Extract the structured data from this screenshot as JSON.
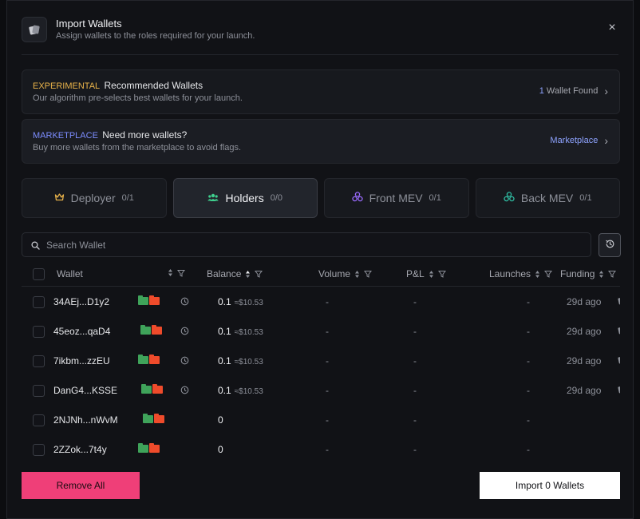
{
  "header": {
    "title": "Import Wallets",
    "subtitle": "Assign wallets to the roles required for your launch."
  },
  "banners": {
    "recommended": {
      "tag": "EXPERIMENTAL",
      "title": "Recommended Wallets",
      "subtitle": "Our algorithm pre-selects best wallets for your launch.",
      "count": "1",
      "count_label": "Wallet Found"
    },
    "marketplace": {
      "tag": "MARKETPLACE",
      "title": "Need more wallets?",
      "subtitle": "Buy more wallets from the marketplace to avoid flags.",
      "link": "Marketplace"
    }
  },
  "roles": [
    {
      "label": "Deployer",
      "count": "0/1",
      "icon": "crown-icon",
      "color": "#e8b24a"
    },
    {
      "label": "Holders",
      "count": "0/0",
      "icon": "users-icon",
      "color": "#3fcf8e"
    },
    {
      "label": "Front MEV",
      "count": "0/1",
      "icon": "cluster-icon",
      "color": "#9b6bff"
    },
    {
      "label": "Back MEV",
      "count": "0/1",
      "icon": "cluster-icon",
      "color": "#2fbfa4"
    }
  ],
  "active_role": "Holders",
  "search": {
    "placeholder": "Search Wallet"
  },
  "table": {
    "headers": {
      "wallet": "Wallet",
      "balance": "Balance",
      "volume": "Volume",
      "pnl": "P&L",
      "launches": "Launches",
      "funding": "Funding"
    },
    "rows": [
      {
        "address": "34AEj...D1y2",
        "balance": "0.1",
        "usd": "≈$10.53",
        "volume": "-",
        "pnl": "-",
        "launches": "-",
        "funding": "29d ago"
      },
      {
        "address": "45eoz...qaD4",
        "balance": "0.1",
        "usd": "≈$10.53",
        "volume": "-",
        "pnl": "-",
        "launches": "-",
        "funding": "29d ago"
      },
      {
        "address": "7ikbm...zzEU",
        "balance": "0.1",
        "usd": "≈$10.53",
        "volume": "-",
        "pnl": "-",
        "launches": "-",
        "funding": "29d ago"
      },
      {
        "address": "DanG4...KSSE",
        "balance": "0.1",
        "usd": "≈$10.53",
        "volume": "-",
        "pnl": "-",
        "launches": "-",
        "funding": "29d ago"
      },
      {
        "address": "2NJNh...nWvM",
        "balance": "0",
        "usd": "",
        "volume": "-",
        "pnl": "-",
        "launches": "-",
        "funding": "-"
      },
      {
        "address": "2ZZok...7t4y",
        "balance": "0",
        "usd": "",
        "volume": "-",
        "pnl": "-",
        "launches": "-",
        "funding": "-"
      }
    ]
  },
  "footer": {
    "remove_all": "Remove All",
    "import": "Import 0 Wallets"
  },
  "colors": {
    "accent_pink": "#ef3f78",
    "accent_blue": "#8ea3ff",
    "experimental": "#e8b24a"
  }
}
